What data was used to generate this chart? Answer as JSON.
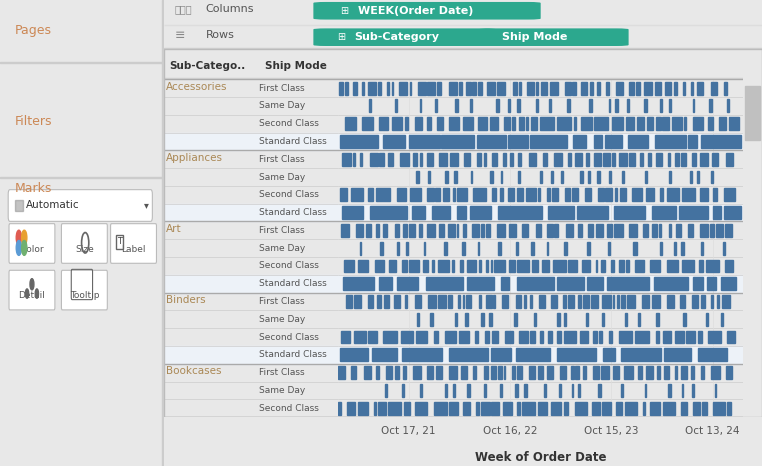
{
  "bg_color": "#e8e8e8",
  "left_panel_color": "#eeeeee",
  "chart_bg": "#ffffff",
  "toolbar_bg": "#f5f5f5",
  "pages_text": "Pages",
  "filters_text": "Filters",
  "marks_text": "Marks",
  "columns_text": "Columns",
  "rows_text": "Rows",
  "pill_columns": "WEEK(Order Date)",
  "pill_subcat": "Sub-Category",
  "pill_shipmode": "Ship Mode",
  "pill_color": "#2ca88e",
  "col_header1": "Sub-Catego..",
  "col_header2": "Ship Mode",
  "x_label": "Week of Order Date",
  "x_ticks": [
    "Oct 17, 21",
    "Oct 16, 22",
    "Oct 15, 23",
    "Oct 13, 24"
  ],
  "x_tick_pos": [
    0.175,
    0.425,
    0.675,
    0.925
  ],
  "subcategories": [
    "Accessories",
    "Appliances",
    "Art",
    "Binders",
    "Bookcases"
  ],
  "ship_modes": [
    "First Class",
    "Same Day",
    "Second Class",
    "Standard Class"
  ],
  "bookcases_modes": [
    "First Class",
    "Same Day",
    "Second Class"
  ],
  "gantt_color": "#4472a0",
  "subcat_label_color": "#888866",
  "mode_label_color": "#555555",
  "separator_color": "#cccccc",
  "thick_sep_color": "#aaaaaa",
  "label_text_color": "#cc8855"
}
